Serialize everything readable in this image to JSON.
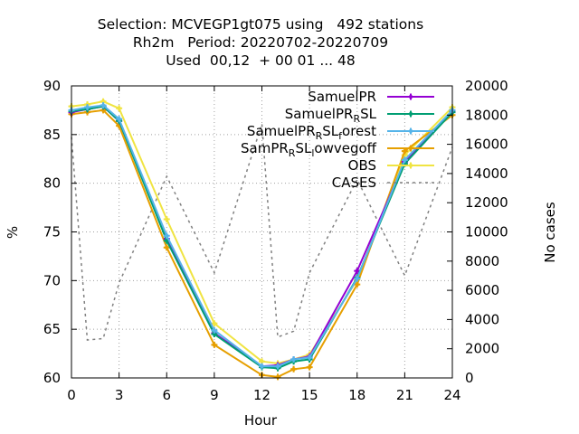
{
  "chart_data": {
    "type": "line",
    "title_lines": [
      "Selection: MCVEGP1gt075 using   492 stations",
      "Rh2m   Period: 20220702-20220709",
      "Used  00,12  + 00 01 ... 48"
    ],
    "xlabel": "Hour",
    "ylabel": "%",
    "y2label": "No cases",
    "xlim": [
      0,
      24
    ],
    "ylim": [
      60,
      90
    ],
    "y2lim": [
      0,
      20000
    ],
    "xticks": [
      "0",
      "3",
      "6",
      "9",
      "12",
      "15",
      "18",
      "21",
      "24"
    ],
    "yticks": [
      "60",
      "65",
      "70",
      "75",
      "80",
      "85",
      "90"
    ],
    "y2ticks": [
      "0",
      "2000",
      "4000",
      "6000",
      "8000",
      "10000",
      "12000",
      "14000",
      "16000",
      "18000",
      "20000"
    ],
    "grid": true,
    "legend_position": "top-right",
    "series": [
      {
        "name": "SamuelPR",
        "legend_parts": [
          {
            "t": "SamuelPR",
            "sub": false
          }
        ],
        "color": "#9400d3",
        "marker": "plus",
        "x": [
          0,
          1,
          2,
          3,
          6,
          9,
          12,
          13,
          14,
          15,
          18,
          21,
          24
        ],
        "y": [
          87.3,
          87.6,
          87.9,
          86.4,
          74.3,
          64.6,
          61.2,
          61.3,
          61.9,
          62.2,
          71.0,
          82.2,
          87.4
        ]
      },
      {
        "name": "SamuelPR_RSL",
        "legend_parts": [
          {
            "t": "SamuelPR",
            "sub": false
          },
          {
            "t": "R",
            "sub": true
          },
          {
            "t": "SL",
            "sub": false
          }
        ],
        "color": "#009e73",
        "marker": "plus",
        "x": [
          0,
          1,
          2,
          3,
          6,
          9,
          12,
          13,
          14,
          15,
          18,
          21,
          24
        ],
        "y": [
          87.4,
          87.6,
          87.9,
          86.4,
          74.1,
          64.5,
          61.1,
          61.0,
          61.7,
          61.9,
          70.3,
          82.0,
          87.3
        ]
      },
      {
        "name": "SamuelPR_RSL_forest",
        "legend_parts": [
          {
            "t": "SamuelPR",
            "sub": false
          },
          {
            "t": "R",
            "sub": true
          },
          {
            "t": "SL",
            "sub": false
          },
          {
            "t": "f",
            "sub": true
          },
          {
            "t": "orest",
            "sub": false
          }
        ],
        "color": "#56b4e9",
        "marker": "plus",
        "x": [
          0,
          1,
          2,
          3,
          6,
          9,
          12,
          13,
          14,
          15,
          18,
          21,
          24
        ],
        "y": [
          87.5,
          87.8,
          88.0,
          86.6,
          74.6,
          64.9,
          61.2,
          61.2,
          61.9,
          62.1,
          70.2,
          82.4,
          87.5
        ]
      },
      {
        "name": "SamPR_RSL_lowvegoff",
        "legend_parts": [
          {
            "t": "SamPR",
            "sub": false
          },
          {
            "t": "R",
            "sub": true
          },
          {
            "t": "SL",
            "sub": false
          },
          {
            "t": "l",
            "sub": true
          },
          {
            "t": "owvegoff",
            "sub": false
          }
        ],
        "color": "#e69f00",
        "marker": "plus",
        "x": [
          0,
          1,
          2,
          3,
          6,
          9,
          12,
          13,
          14,
          15,
          18,
          21,
          24
        ],
        "y": [
          87.1,
          87.3,
          87.5,
          85.9,
          73.4,
          63.4,
          60.3,
          60.1,
          60.9,
          61.1,
          69.6,
          83.3,
          87.0
        ]
      },
      {
        "name": "OBS",
        "legend_parts": [
          {
            "t": "OBS",
            "sub": false
          }
        ],
        "color": "#f0e442",
        "marker": "plus",
        "x": [
          0,
          1,
          2,
          3,
          6,
          9,
          12,
          13,
          14,
          15,
          18,
          21,
          24
        ],
        "y": [
          87.9,
          88.1,
          88.4,
          87.7,
          76.3,
          65.6,
          61.7,
          61.5,
          61.9,
          62.4,
          70.1,
          82.9,
          87.8
        ]
      },
      {
        "name": "CASES",
        "legend_parts": [
          {
            "t": "CASES",
            "sub": false
          }
        ],
        "color": "#808080",
        "marker": "none",
        "dashed": true,
        "axis": "y2",
        "x": [
          0,
          1,
          2,
          3,
          6,
          9,
          12,
          13,
          14,
          15,
          18,
          21,
          24
        ],
        "y": [
          16500,
          2600,
          2700,
          6500,
          13800,
          7200,
          17400,
          2800,
          3200,
          7200,
          13600,
          7000,
          15800
        ]
      }
    ]
  }
}
